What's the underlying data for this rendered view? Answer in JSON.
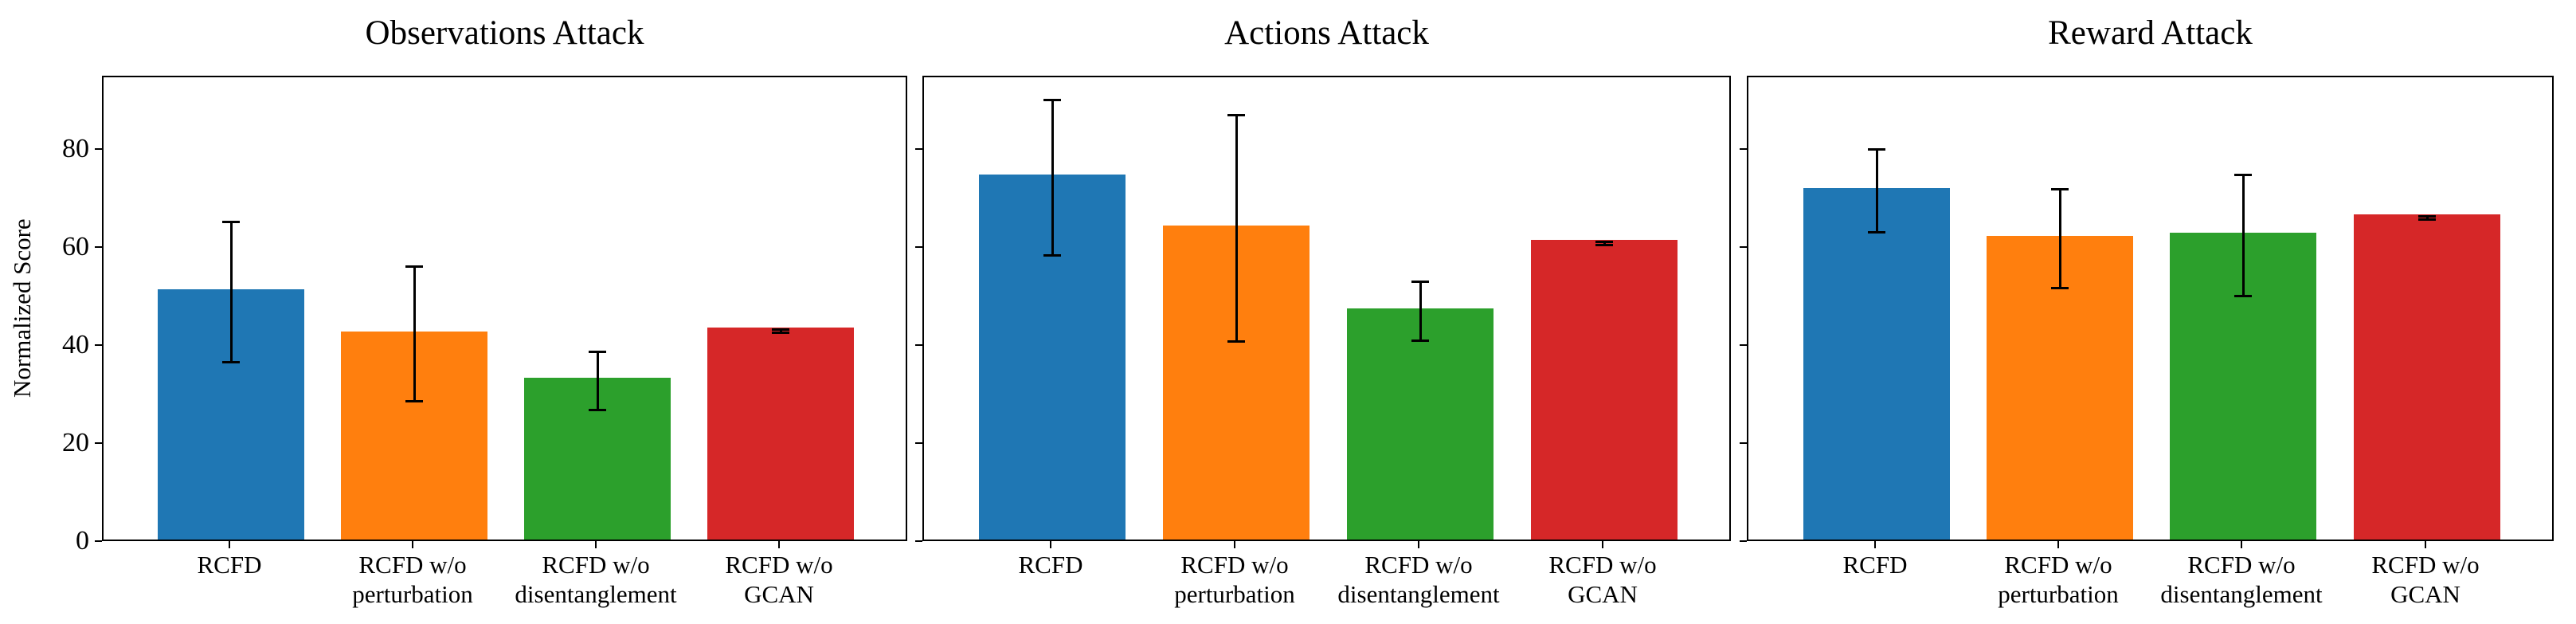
{
  "figure": {
    "ylabel": "Normalized Score",
    "background_color": "#ffffff",
    "axis_color": "#000000",
    "yticks": [
      0,
      20,
      40,
      60,
      80
    ],
    "ylim": [
      0,
      95
    ],
    "bar_colors": [
      "#1f77b4",
      "#ff7f0e",
      "#2ca02c",
      "#d62728"
    ],
    "categories_lines": [
      [
        "RCFD"
      ],
      [
        "RCFD w/o",
        "perturbation"
      ],
      [
        "RCFD w/o",
        "disentanglement"
      ],
      [
        "RCFD w/o",
        "GCAN"
      ]
    ]
  },
  "chart_data": [
    {
      "type": "bar",
      "title": "Observations Attack",
      "categories": [
        "RCFD",
        "RCFD w/o perturbation",
        "RCFD w/o disentanglement",
        "RCFD w/o GCAN"
      ],
      "values": [
        51.1,
        42.5,
        33.0,
        43.2
      ],
      "error_low": [
        36.8,
        28.8,
        27.1,
        42.9
      ],
      "error_high": [
        65.4,
        56.3,
        38.9,
        43.5
      ],
      "ylabel": "Normalized Score",
      "ylim": [
        0,
        95
      ],
      "yticks": [
        0,
        20,
        40,
        60,
        80
      ],
      "grid": false,
      "legend": "none",
      "bar_colors": [
        "#1f77b4",
        "#ff7f0e",
        "#2ca02c",
        "#d62728"
      ]
    },
    {
      "type": "bar",
      "title": "Actions Attack",
      "categories": [
        "RCFD",
        "RCFD w/o perturbation",
        "RCFD w/o disentanglement",
        "RCFD w/o GCAN"
      ],
      "values": [
        74.5,
        64.1,
        47.1,
        61.1
      ],
      "error_low": [
        58.7,
        41.0,
        41.2,
        60.8
      ],
      "error_high": [
        90.3,
        87.3,
        53.2,
        61.4
      ],
      "ylabel": "",
      "ylim": [
        0,
        95
      ],
      "yticks": [
        0,
        20,
        40,
        60,
        80
      ],
      "grid": false,
      "legend": "none",
      "bar_colors": [
        "#1f77b4",
        "#ff7f0e",
        "#2ca02c",
        "#d62728"
      ]
    },
    {
      "type": "bar",
      "title": "Reward Attack",
      "categories": [
        "RCFD",
        "RCFD w/o perturbation",
        "RCFD w/o disentanglement",
        "RCFD w/o GCAN"
      ],
      "values": [
        71.8,
        61.9,
        62.7,
        66.3
      ],
      "error_low": [
        63.3,
        51.9,
        50.4,
        66.0
      ],
      "error_high": [
        80.3,
        72.2,
        75.0,
        66.6
      ],
      "ylabel": "",
      "ylim": [
        0,
        95
      ],
      "yticks": [
        0,
        20,
        40,
        60,
        80
      ],
      "grid": false,
      "legend": "none",
      "bar_colors": [
        "#1f77b4",
        "#ff7f0e",
        "#2ca02c",
        "#d62728"
      ]
    }
  ]
}
